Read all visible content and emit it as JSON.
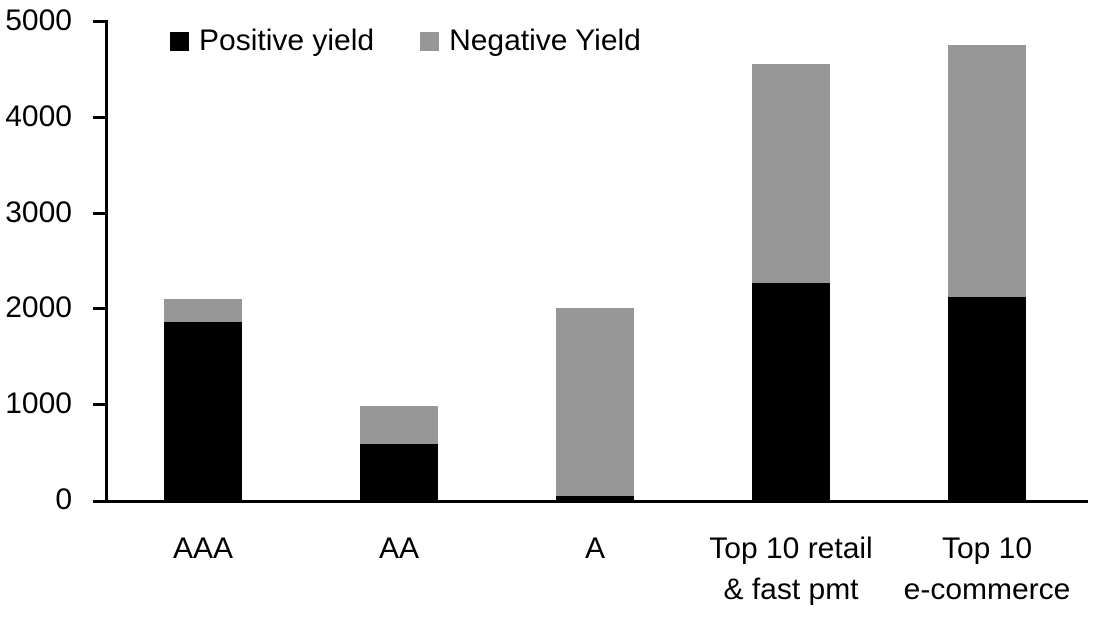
{
  "chart_data": {
    "type": "bar",
    "stacked": true,
    "title": "",
    "xlabel": "",
    "ylabel": "",
    "categories": [
      "AAA",
      "AA",
      "A",
      "Top 10 retail & fast pmt",
      "Top 10 e-commerce"
    ],
    "category_display_lines": [
      [
        "AAA"
      ],
      [
        "AA"
      ],
      [
        "A"
      ],
      [
        "Top 10 retail",
        "& fast pmt"
      ],
      [
        "Top 10",
        "e-commerce"
      ]
    ],
    "series": [
      {
        "name": "Positive yield",
        "color": "#000000",
        "values": [
          1860,
          580,
          40,
          2270,
          2120
        ]
      },
      {
        "name": "Negative Yield",
        "color": "#979797",
        "values": [
          240,
          400,
          1960,
          2280,
          2630
        ]
      }
    ],
    "stack_totals": [
      2100,
      980,
      2000,
      4550,
      4750
    ],
    "ylim": [
      0,
      5000
    ],
    "ytick_interval": 1000,
    "ytick_labels": [
      "0",
      "1000",
      "2000",
      "3000",
      "4000",
      "5000"
    ],
    "grid": false,
    "legend_position": "top",
    "axis_color": "#000000",
    "background_color": "#ffffff"
  }
}
